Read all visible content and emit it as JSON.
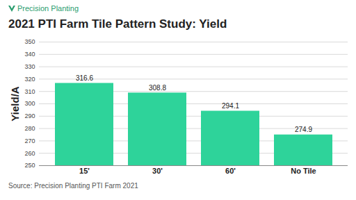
{
  "chart_data": {
    "type": "bar",
    "logo": "Precision Planting",
    "title": "2021 PTI Farm Tile Pattern Study: Yield",
    "y_label": "Yield/A",
    "source": "Source: Precision Planting PTI Farm 2021",
    "categories": [
      "15'",
      "30'",
      "60'",
      "No Tile"
    ],
    "values": [
      316.6,
      308.8,
      294.1,
      274.9
    ],
    "color": "#2ed39a",
    "ylim": [
      250,
      350
    ],
    "yticks": [
      250,
      260,
      270,
      280,
      290,
      300,
      310,
      320,
      330,
      340,
      350
    ],
    "grid": true,
    "data_labels": true
  }
}
